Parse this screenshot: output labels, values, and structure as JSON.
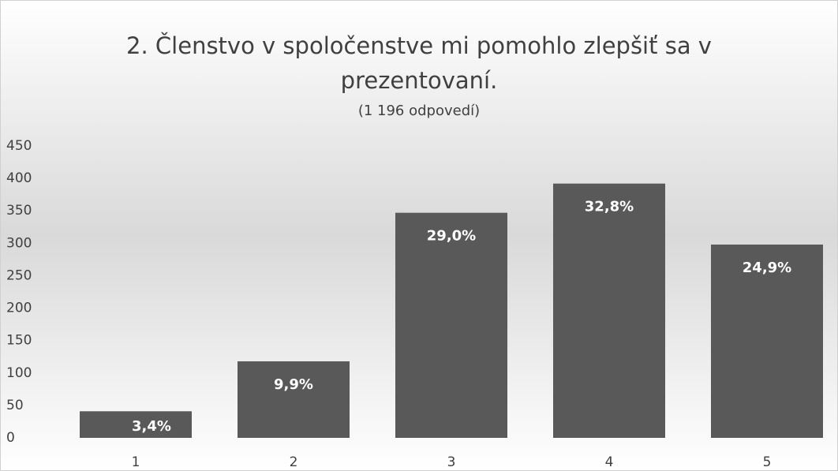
{
  "chart_data": {
    "type": "bar",
    "title": "2. Členstvo v spoločenstve mi pomohlo zlepšiť sa v prezentovaní.",
    "subtitle": "(1 196 odpovedí)",
    "categories": [
      "1",
      "2",
      "3",
      "4",
      "5"
    ],
    "values": [
      41,
      118,
      347,
      392,
      298
    ],
    "value_labels": [
      "3,4%",
      "9,9%",
      "29,0%",
      "32,8%",
      "24,9%"
    ],
    "color": "#595959",
    "ylim": [
      0,
      450
    ],
    "yticks": [
      0,
      50,
      100,
      150,
      200,
      250,
      300,
      350,
      400,
      450
    ],
    "grid": false
  }
}
